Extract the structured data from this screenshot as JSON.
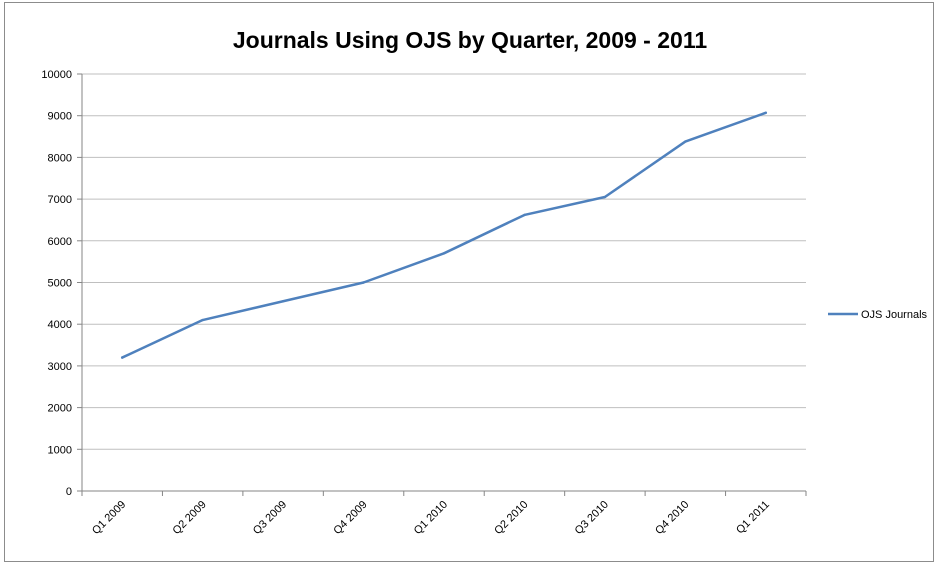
{
  "chart_data": {
    "type": "line",
    "title": "Journals Using OJS by Quarter, 2009 - 2011",
    "xlabel": "",
    "ylabel": "",
    "categories": [
      "Q1 2009",
      "Q2 2009",
      "Q3 2009",
      "Q4 2009",
      "Q1 2010",
      "Q2 2010",
      "Q3 2010",
      "Q4 2010",
      "Q1 2011"
    ],
    "series": [
      {
        "name": "OJS Journals",
        "values": [
          3200,
          4100,
          4550,
          5000,
          5700,
          6620,
          7050,
          8380,
          9070
        ]
      }
    ],
    "ylim": [
      0,
      10000
    ],
    "yticks": [
      "0",
      "1000",
      "2000",
      "3000",
      "4000",
      "5000",
      "6000",
      "7000",
      "8000",
      "9000",
      "10000"
    ],
    "grid": true,
    "legend": "right",
    "colors": {
      "series": "#4f81bd",
      "grid": "#bfbfbf",
      "axis": "#868686"
    }
  }
}
